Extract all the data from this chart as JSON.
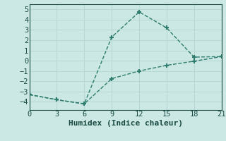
{
  "line1_x": [
    0,
    3,
    6,
    9,
    12,
    15,
    18,
    21
  ],
  "line1_y": [
    -3.3,
    -3.8,
    -4.2,
    2.3,
    4.75,
    3.2,
    0.35,
    0.4
  ],
  "line2_x": [
    0,
    3,
    6,
    9,
    12,
    15,
    18,
    21
  ],
  "line2_y": [
    -3.3,
    -3.8,
    -4.2,
    -1.75,
    -1.0,
    -0.45,
    -0.05,
    0.4
  ],
  "line_color": "#2e7d6e",
  "marker": "+",
  "markersize": 5,
  "markeredgewidth": 1.5,
  "linewidth": 1.0,
  "linestyle": "--",
  "xlabel": "Humidex (Indice chaleur)",
  "xlim": [
    0,
    21
  ],
  "ylim": [
    -4.8,
    5.5
  ],
  "yticks": [
    -4,
    -3,
    -2,
    -1,
    0,
    1,
    2,
    3,
    4,
    5
  ],
  "xticks": [
    0,
    3,
    6,
    9,
    12,
    15,
    18,
    21
  ],
  "bg_color": "#cce8e4",
  "grid_color": "#b8d8d4",
  "font_color": "#1a4a44",
  "tick_fontsize": 7.5,
  "xlabel_fontsize": 8
}
